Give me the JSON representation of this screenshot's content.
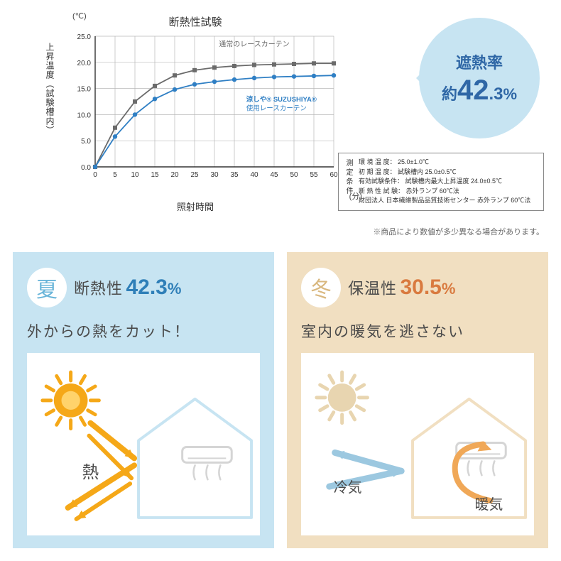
{
  "chart": {
    "title": "断熱性試験",
    "y_unit": "(℃)",
    "y_label": "上昇温度（試験槽内）",
    "x_label": "照射時間",
    "x_unit": "(分)",
    "xlim": [
      0,
      60
    ],
    "ylim": [
      0,
      25
    ],
    "xtick_step": 5,
    "ytick_step": 5,
    "grid_color": "#b8b8b8",
    "axis_color": "#333333",
    "background": "#ffffff",
    "series": [
      {
        "name": "通常のレースカーテン",
        "label_pos": "top-right",
        "color": "#6b6b6b",
        "marker": "square",
        "values": [
          [
            0,
            0
          ],
          [
            5,
            7.5
          ],
          [
            10,
            12.5
          ],
          [
            15,
            15.5
          ],
          [
            20,
            17.5
          ],
          [
            25,
            18.5
          ],
          [
            30,
            19
          ],
          [
            35,
            19.3
          ],
          [
            40,
            19.5
          ],
          [
            45,
            19.6
          ],
          [
            50,
            19.7
          ],
          [
            55,
            19.8
          ],
          [
            60,
            19.8
          ]
        ]
      },
      {
        "name_html": [
          "涼しや® SUZUSHIYA®",
          "使用レースカーテン"
        ],
        "label_pos": "mid-right",
        "color": "#2f7fc4",
        "marker": "circle",
        "values": [
          [
            0,
            0
          ],
          [
            5,
            5.8
          ],
          [
            10,
            10
          ],
          [
            15,
            13
          ],
          [
            20,
            14.8
          ],
          [
            25,
            15.8
          ],
          [
            30,
            16.3
          ],
          [
            35,
            16.7
          ],
          [
            40,
            17
          ],
          [
            45,
            17.2
          ],
          [
            50,
            17.3
          ],
          [
            55,
            17.4
          ],
          [
            60,
            17.5
          ]
        ]
      }
    ]
  },
  "bubble": {
    "line1": "遮熱率",
    "approx": "約",
    "big": "42",
    "dec": ".3",
    "pct": "%"
  },
  "conditions": {
    "label": "測定条件",
    "rows": [
      "環 境 温 度： 25.0±1.0℃",
      "初 期 温 度： 試験槽内 25.0±0.5℃",
      "有効試験条件： 試験槽内最大上昇温度 24.0±0.5℃",
      "断 熱 性 試 験： 赤外ランプ 60℃法",
      "財団法人 日本繊維製品品質技術センター 赤外ランプ 60℃法"
    ]
  },
  "disclaimer": "※商品により数値が多少異なる場合があります。",
  "summer": {
    "badge": "夏",
    "label": "断熱性",
    "value": "42.3",
    "pct": "%",
    "subtitle": "外からの熱をカット！",
    "colors": {
      "bg": "#c7e4f2",
      "accent": "#6ab5d9",
      "sun": "#f5a818",
      "sun_inner": "#ffd36b",
      "arrow": "#f5a818",
      "house": "#c7e4f2",
      "ac": "#d5d5d5"
    },
    "heat_label": "熱"
  },
  "winter": {
    "badge": "冬",
    "label": "保温性",
    "value": "30.5",
    "pct": "%",
    "subtitle": "室内の暖気を逃さない",
    "colors": {
      "bg": "#f1dfc1",
      "accent": "#d9b880",
      "sun": "#e8d5b0",
      "arrow_cold": "#9cc8e0",
      "arrow_warm": "#f0a858",
      "house": "#f1dfc1",
      "ac": "#d5d5d5"
    },
    "cold_label": "冷気",
    "warm_label": "暖気"
  }
}
